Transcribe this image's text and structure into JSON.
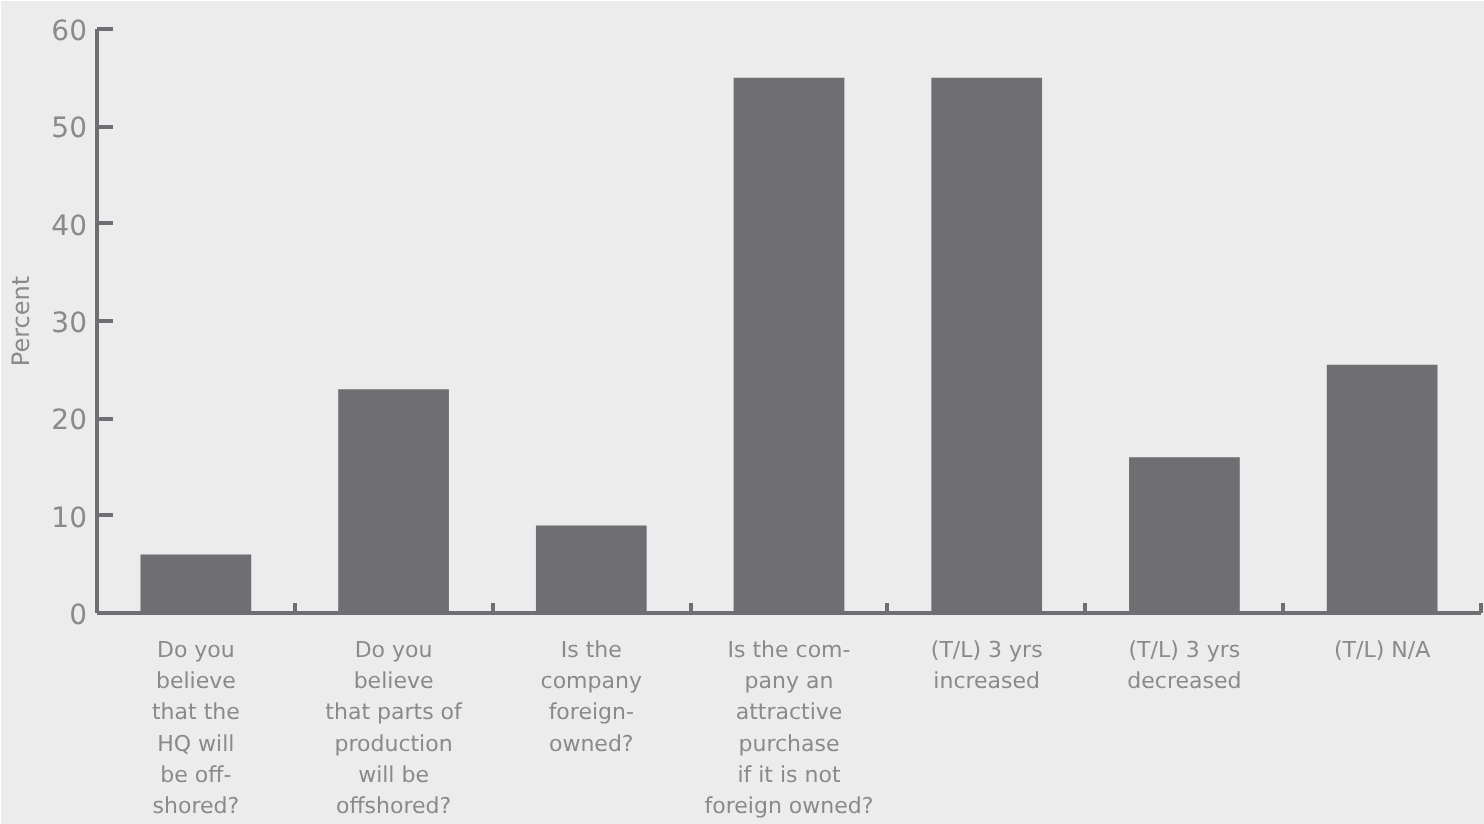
{
  "chart_data": {
    "type": "bar",
    "ylabel": "Percent",
    "categories": [
      "Do you\nbelieve\nthat the\nHQ will\nbe off-\nshored?",
      "Do you\nbelieve\nthat parts of\nproduction\nwill be\noffshored?",
      "Is the\ncompany\nforeign-\nowned?",
      "Is the com-\npany an\nattractive\npurchase\nif it is not\nforeign owned?",
      "(T/L) 3 yrs\nincreased",
      "(T/L) 3 yrs\ndecreased",
      "(T/L) N/A"
    ],
    "values": [
      6,
      23,
      9,
      55,
      55,
      16,
      25.5
    ],
    "color": "#6f6e73",
    "ylim": [
      0,
      60
    ],
    "yticks": [
      0,
      10,
      20,
      30,
      40,
      50,
      60
    ],
    "grid": false
  }
}
